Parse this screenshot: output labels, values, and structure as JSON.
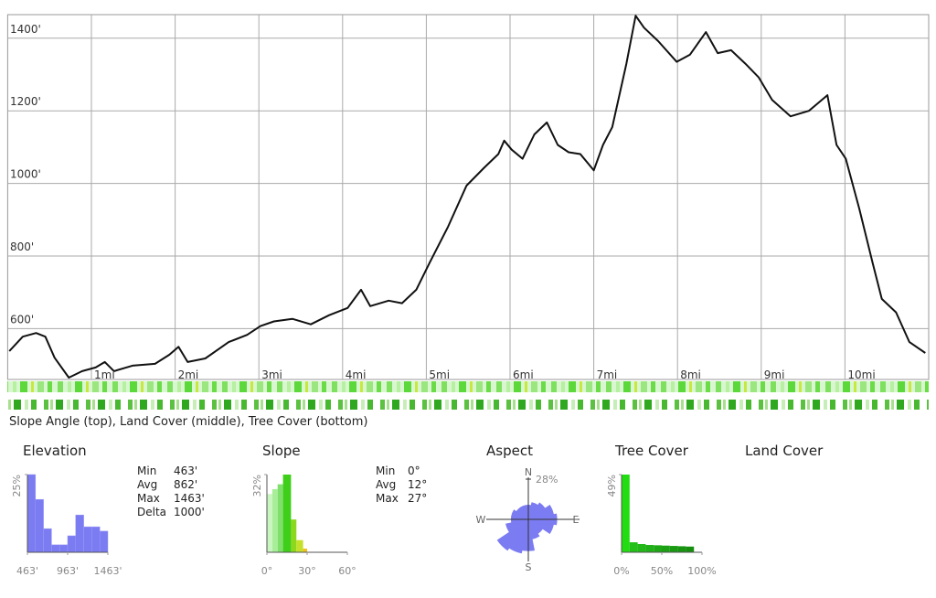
{
  "chart_data": [
    {
      "type": "line",
      "x": [
        0.02,
        0.18,
        0.34,
        0.45,
        0.56,
        0.73,
        0.89,
        1.05,
        1.16,
        1.27,
        1.49,
        1.76,
        1.93,
        2.04,
        2.15,
        2.36,
        2.64,
        2.86,
        3.02,
        3.18,
        3.4,
        3.62,
        3.84,
        4.06,
        4.22,
        4.33,
        4.55,
        4.71,
        4.88,
        5.04,
        5.26,
        5.48,
        5.69,
        5.86,
        5.93,
        6.02,
        6.15,
        6.29,
        6.44,
        6.57,
        6.7,
        6.84,
        7.0,
        7.11,
        7.22,
        7.39,
        7.5,
        7.6,
        7.77,
        7.99,
        8.15,
        8.34,
        8.48,
        8.64,
        8.81,
        8.97,
        9.13,
        9.35,
        9.57,
        9.79,
        9.9,
        10.01,
        10.17,
        10.33,
        10.44,
        10.61,
        10.77,
        10.96
      ],
      "series": [
        {
          "color": "#111111",
          "values": [
            538,
            578,
            588,
            578,
            520,
            465,
            483,
            493,
            508,
            483,
            498,
            503,
            528,
            550,
            508,
            518,
            563,
            583,
            607,
            620,
            627,
            612,
            637,
            657,
            707,
            662,
            677,
            670,
            707,
            782,
            881,
            994,
            1043,
            1081,
            1118,
            1093,
            1068,
            1135,
            1168,
            1106,
            1086,
            1081,
            1036,
            1106,
            1155,
            1330,
            1462,
            1429,
            1392,
            1335,
            1355,
            1417,
            1359,
            1367,
            1330,
            1292,
            1230,
            1185,
            1200,
            1243,
            1106,
            1068,
            931,
            782,
            682,
            645,
            563,
            533
          ]
        }
      ],
      "xlim": [
        0,
        11
      ],
      "xticks": [
        {
          "value": 1,
          "label": "1mi"
        },
        {
          "value": 2,
          "label": "2mi"
        },
        {
          "value": 3,
          "label": "3mi"
        },
        {
          "value": 4,
          "label": "4mi"
        },
        {
          "value": 5,
          "label": "5mi"
        },
        {
          "value": 6,
          "label": "6mi"
        },
        {
          "value": 7,
          "label": "7mi"
        },
        {
          "value": 8,
          "label": "8mi"
        },
        {
          "value": 9,
          "label": "9mi"
        },
        {
          "value": 10,
          "label": "10mi"
        }
      ],
      "ylim": [
        460,
        1465
      ],
      "yticks": [
        {
          "value": 600,
          "label": "600'"
        },
        {
          "value": 800,
          "label": "800'"
        },
        {
          "value": 1000,
          "label": "1000'"
        },
        {
          "value": 1200,
          "label": "1200'"
        },
        {
          "value": 1400,
          "label": "1400'"
        }
      ],
      "grid": true,
      "caption": "Slope Angle (top), Land Cover (middle), Tree Cover (bottom)"
    },
    {
      "type": "histogram",
      "title": "Elevation",
      "bins": [
        463,
        563,
        663,
        763,
        863,
        963,
        1063,
        1163,
        1263,
        1363,
        1463
      ],
      "values": [
        25,
        17,
        7.6,
        2.4,
        2.4,
        5.3,
        12,
        8.2,
        8.2,
        6.8
      ],
      "color": "#7b7bf2",
      "xlim": [
        463,
        1463
      ],
      "xticks": [
        {
          "value": 463,
          "label": "463'"
        },
        {
          "value": 963,
          "label": "963'"
        },
        {
          "value": 1463,
          "label": "1463'"
        }
      ],
      "ylim": [
        0,
        25
      ],
      "yticks": [
        {
          "value": 25,
          "label": "25%"
        }
      ],
      "stats": [
        [
          "Min",
          "463'"
        ],
        [
          "Avg",
          "862'"
        ],
        [
          "Max",
          "1463'"
        ],
        [
          "Delta",
          "1000'"
        ]
      ]
    },
    {
      "type": "histogram",
      "title": "Slope",
      "bins": [
        0,
        4,
        8,
        12,
        18,
        22,
        27,
        30
      ],
      "values": [
        24,
        26,
        28,
        32,
        13.5,
        5,
        1.5
      ],
      "colors": [
        "#c8f5c0",
        "#a8ee98",
        "#7ee06a",
        "#3fcf1a",
        "#8bd81c",
        "#c4e02a",
        "#f0c020"
      ],
      "xlim": [
        0,
        60
      ],
      "xticks": [
        {
          "value": 0,
          "label": "0°"
        },
        {
          "value": 30,
          "label": "30°"
        },
        {
          "value": 60,
          "label": "60°"
        }
      ],
      "ylim": [
        0,
        32
      ],
      "yticks": [
        {
          "value": 32,
          "label": "32%"
        }
      ],
      "stats": [
        [
          "Min",
          "0°"
        ],
        [
          "Avg",
          "12°"
        ],
        [
          "Max",
          "27°"
        ]
      ]
    },
    {
      "type": "rose",
      "title": "Aspect",
      "categories": [
        "N",
        null,
        null,
        null,
        "E",
        null,
        null,
        null,
        "S",
        null,
        null,
        null,
        "W",
        null,
        null,
        null
      ],
      "values": [
        10,
        12,
        14,
        18,
        20,
        18,
        12,
        14,
        22,
        24,
        26,
        16,
        12,
        12,
        10,
        10
      ],
      "color": "#7b7bf2",
      "rlim": [
        0,
        28
      ],
      "rticks": [
        {
          "value": 28,
          "label": "28%"
        }
      ]
    },
    {
      "type": "histogram",
      "title": "Tree Cover",
      "bins": [
        0,
        10,
        20,
        30,
        40,
        50,
        60,
        70,
        80,
        90
      ],
      "values": [
        49,
        6.3,
        5.2,
        4.6,
        4.4,
        4.2,
        4.0,
        3.8,
        3.6
      ],
      "colors": [
        "#22dd11",
        "#22c018",
        "#22b818",
        "#20b018",
        "#1ea816",
        "#1ca014",
        "#1a9a12",
        "#189410",
        "#168e0e"
      ],
      "xlim": [
        0,
        100
      ],
      "xticks": [
        {
          "value": 0,
          "label": "0%"
        },
        {
          "value": 50,
          "label": "50%"
        },
        {
          "value": 100,
          "label": "100%"
        }
      ],
      "ylim": [
        0,
        49
      ],
      "yticks": [
        {
          "value": 49,
          "label": "49%"
        }
      ]
    }
  ],
  "land_cover": {
    "title": "Land Cover"
  }
}
